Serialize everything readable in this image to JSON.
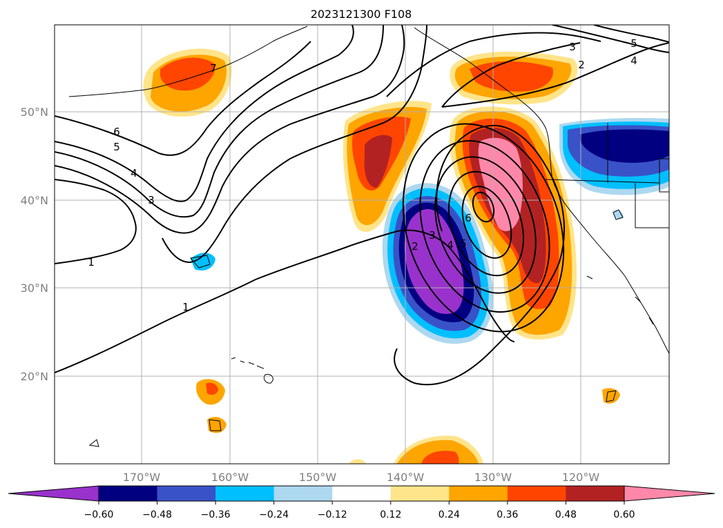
{
  "title": "2023121300 F108",
  "map": {
    "lat_labels": [
      "50°N",
      "40°N",
      "30°N",
      "20°N"
    ],
    "lon_labels": [
      "170°W",
      "160°W",
      "150°W",
      "140°W",
      "130°W",
      "120°W"
    ],
    "contour_labels": [
      {
        "text": "6"
      },
      {
        "text": "5"
      },
      {
        "text": "4"
      },
      {
        "text": "3"
      },
      {
        "text": "1"
      },
      {
        "text": "1"
      },
      {
        "text": "3"
      },
      {
        "text": "2"
      },
      {
        "text": "5"
      },
      {
        "text": "4"
      },
      {
        "text": "2"
      },
      {
        "text": "3"
      },
      {
        "text": "4"
      },
      {
        "text": "5"
      },
      {
        "text": "6"
      },
      {
        "text": "7"
      }
    ]
  },
  "colorbar": {
    "tick_labels": [
      "−0.60",
      "−0.48",
      "−0.36",
      "−0.24",
      "−0.12",
      "0.12",
      "0.24",
      "0.36",
      "0.48",
      "0.60"
    ],
    "colors": [
      "#9932cc",
      "#000080",
      "#3a52c8",
      "#00bfff",
      "#add8f0",
      "#ffffff",
      "#ffe48a",
      "#ffa500",
      "#ff4500",
      "#b22222",
      "#ff88aa"
    ]
  }
}
